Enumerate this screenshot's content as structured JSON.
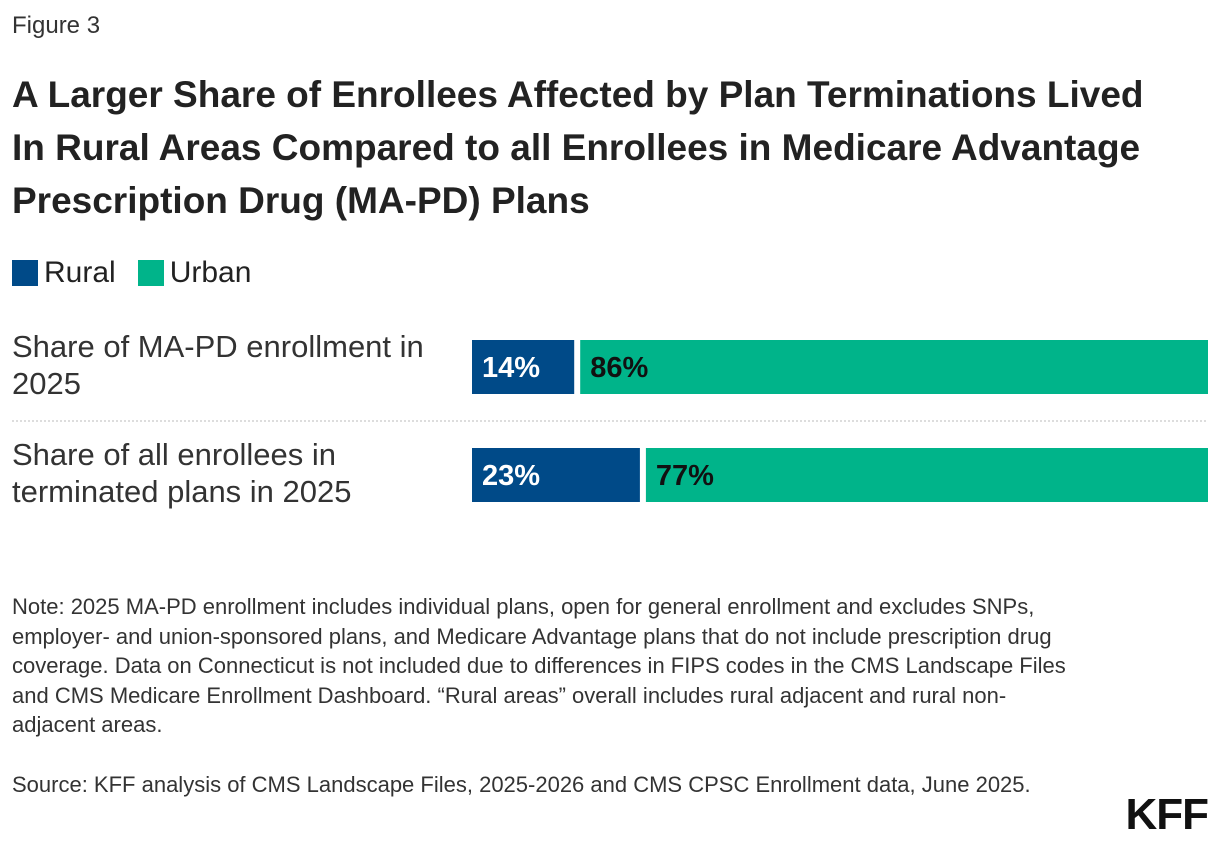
{
  "figure_label": "Figure 3",
  "title": "A Larger Share of Enrollees Affected by Plan Terminations Lived In Rural Areas Compared to all Enrollees in Medicare Advantage Prescription Drug (MA-PD) Plans",
  "colors": {
    "rural": "#004a88",
    "urban": "#00b48a",
    "divider": "#bbbbbb"
  },
  "chart_data": {
    "type": "bar",
    "orientation": "horizontal",
    "stacked": true,
    "unit": "%",
    "categories": [
      [
        "Share of MA-PD enrollment in",
        "2025"
      ],
      [
        "Share of all enrollees in",
        "terminated plans in 2025"
      ]
    ],
    "series": [
      {
        "name": "Rural",
        "values": [
          14,
          23
        ],
        "labels": [
          "14%",
          "23%"
        ]
      },
      {
        "name": "Urban",
        "values": [
          86,
          77
        ],
        "labels": [
          "86%",
          "77%"
        ]
      }
    ],
    "legend": "top-left",
    "grid": false
  },
  "note": "Note: 2025 MA-PD enrollment includes individual plans, open for general enrollment and excludes SNPs, employer- and union-sponsored plans, and Medicare Advantage plans that do not include prescription drug coverage. Data on Connecticut is not included due to differences in FIPS codes in the CMS Landscape Files and CMS Medicare Enrollment Dashboard. “Rural areas” overall includes rural adjacent and rural non-adjacent areas.",
  "source": "Source: KFF analysis of CMS Landscape Files, 2025-2026 and CMS CPSC Enrollment data, June 2025.",
  "logo_text": "KFF"
}
